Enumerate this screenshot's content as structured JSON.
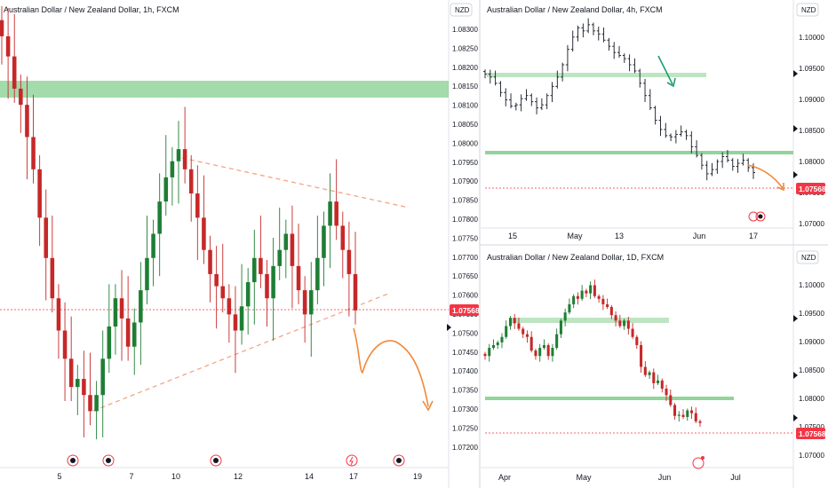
{
  "charts": [
    {
      "id": "p1",
      "title": "Australian Dollar / New Zealand Dollar, 1h, FXCM",
      "currency": "NZD",
      "price_tag": "1.07568",
      "y_ticks": [
        "1.08300",
        "1.08250",
        "1.08200",
        "1.08150",
        "1.08100",
        "1.08050",
        "1.08000",
        "1.07950",
        "1.07900",
        "1.07850",
        "1.07800",
        "1.07750",
        "1.07700",
        "1.07650",
        "1.07600",
        "1.07550",
        "1.07500",
        "1.07450",
        "1.07400",
        "1.07350",
        "1.07300",
        "1.07250",
        "1.07200"
      ],
      "x_ticks": [
        "5",
        "7",
        "10",
        "12",
        "14",
        "17",
        "19"
      ],
      "colors": {
        "up": "#1e7e34",
        "down": "#c62828",
        "zone": "#86cf8f",
        "arrow": "#f0893a",
        "tag": "#f23645"
      }
    },
    {
      "id": "p2",
      "title": "Australian Dollar / New Zealand Dollar, 4h, FXCM",
      "currency": "NZD",
      "price_tag": "1.07568",
      "y_ticks": [
        "1.10000",
        "1.09500",
        "1.09000",
        "1.08500",
        "1.08000",
        "1.07500",
        "1.07000"
      ],
      "x_ticks": [
        "15",
        "May",
        "13",
        "Jun",
        "17"
      ],
      "colors": {
        "up": "#131722",
        "down": "#131722",
        "zone": "#86cf8f",
        "arrow_up": "#1e9e6a",
        "arrow": "#f0893a",
        "tag": "#f23645"
      }
    },
    {
      "id": "p3",
      "title": "Australian Dollar / New Zealand Dollar, 1D, FXCM",
      "currency": "NZD",
      "price_tag": "1.07568",
      "y_ticks": [
        "1.10000",
        "1.09500",
        "1.09000",
        "1.08500",
        "1.08000",
        "1.07500",
        "1.07000"
      ],
      "x_ticks": [
        "Apr",
        "May",
        "Jun",
        "Jul"
      ],
      "colors": {
        "up": "#1e7e34",
        "down": "#c62828",
        "zone": "#86cf8f",
        "tag": "#f23645"
      }
    }
  ],
  "chart_data": [
    {
      "type": "candlestick",
      "title": "Australian Dollar / New Zealand Dollar, 1h, FXCM",
      "ylim": [
        1.0718,
        1.0834
      ],
      "horizontal_zone": [
        1.0811,
        1.0817
      ],
      "last_price": 1.07568,
      "trendlines": [
        {
          "style": "dashed",
          "from": [
            0.21,
            1.0797
          ],
          "to": [
            0.92,
            1.0783
          ]
        },
        {
          "style": "dashed",
          "from": [
            0.21,
            1.073
          ],
          "to": [
            0.87,
            1.0762
          ]
        }
      ],
      "closes": [
        1.0825,
        1.082,
        1.0812,
        1.0808,
        1.08,
        1.0792,
        1.078,
        1.077,
        1.076,
        1.0752,
        1.0745,
        1.0738,
        1.074,
        1.0736,
        1.0732,
        1.0736,
        1.0745,
        1.0753,
        1.076,
        1.0755,
        1.0748,
        1.0754,
        1.0762,
        1.077,
        1.0776,
        1.0784,
        1.079,
        1.0794,
        1.0797,
        1.0792,
        1.0786,
        1.078,
        1.0772,
        1.0766,
        1.0763,
        1.076,
        1.0756,
        1.0752,
        1.0758,
        1.0764,
        1.077,
        1.0766,
        1.076,
        1.0768,
        1.0772,
        1.0776,
        1.0768,
        1.0762,
        1.0756,
        1.0762,
        1.077,
        1.0778,
        1.0784,
        1.0778,
        1.0772,
        1.0766,
        1.0757
      ]
    },
    {
      "type": "line",
      "title": "Australian Dollar / New Zealand Dollar, 4h, FXCM",
      "ylim": [
        1.068,
        1.103
      ],
      "horizontal_zones": [
        [
          1.094,
          1.0945
        ],
        [
          1.0815,
          1.082
        ]
      ],
      "last_price": 1.07568,
      "closes": [
        1.093,
        1.0925,
        1.0915,
        1.09,
        1.0888,
        1.0878,
        1.088,
        1.089,
        1.0895,
        1.0885,
        1.0875,
        1.088,
        1.0895,
        1.091,
        1.0925,
        1.0945,
        1.097,
        1.099,
        1.1005,
        1.1,
        1.101,
        1.1,
        1.0995,
        1.0985,
        1.0975,
        1.0965,
        1.096,
        1.0955,
        1.0945,
        1.0935,
        1.0915,
        1.0895,
        1.0875,
        1.0855,
        1.084,
        1.083,
        1.0828,
        1.0832,
        1.0836,
        1.083,
        1.0812,
        1.0798,
        1.0782,
        1.0768,
        1.0775,
        1.0788,
        1.0796,
        1.079,
        1.078,
        1.0785,
        1.079,
        1.0778,
        1.077
      ]
    },
    {
      "type": "candlestick",
      "title": "Australian Dollar / New Zealand Dollar, 1D, FXCM",
      "ylim": [
        1.0675,
        1.1045
      ],
      "horizontal_zones": [
        [
          1.094,
          1.0945
        ],
        [
          1.0813,
          1.0818
        ]
      ],
      "last_price": 1.07568,
      "closes": [
        1.088,
        1.0895,
        1.09,
        1.0905,
        1.0915,
        1.0935,
        1.095,
        1.094,
        1.093,
        1.092,
        1.0915,
        1.089,
        1.088,
        1.0895,
        1.09,
        1.088,
        1.0895,
        1.092,
        1.0945,
        1.096,
        1.0975,
        1.099,
        1.0985,
        1.1,
        1.0995,
        1.101,
        1.099,
        1.0985,
        1.0975,
        1.097,
        1.0955,
        1.0945,
        1.0935,
        1.0945,
        1.093,
        1.0915,
        1.09,
        1.086,
        1.0845,
        1.085,
        1.083,
        1.0835,
        1.082,
        1.0808,
        1.079,
        1.077,
        1.0772,
        1.0768,
        1.078,
        1.0775,
        1.076,
        1.0757
      ]
    }
  ]
}
